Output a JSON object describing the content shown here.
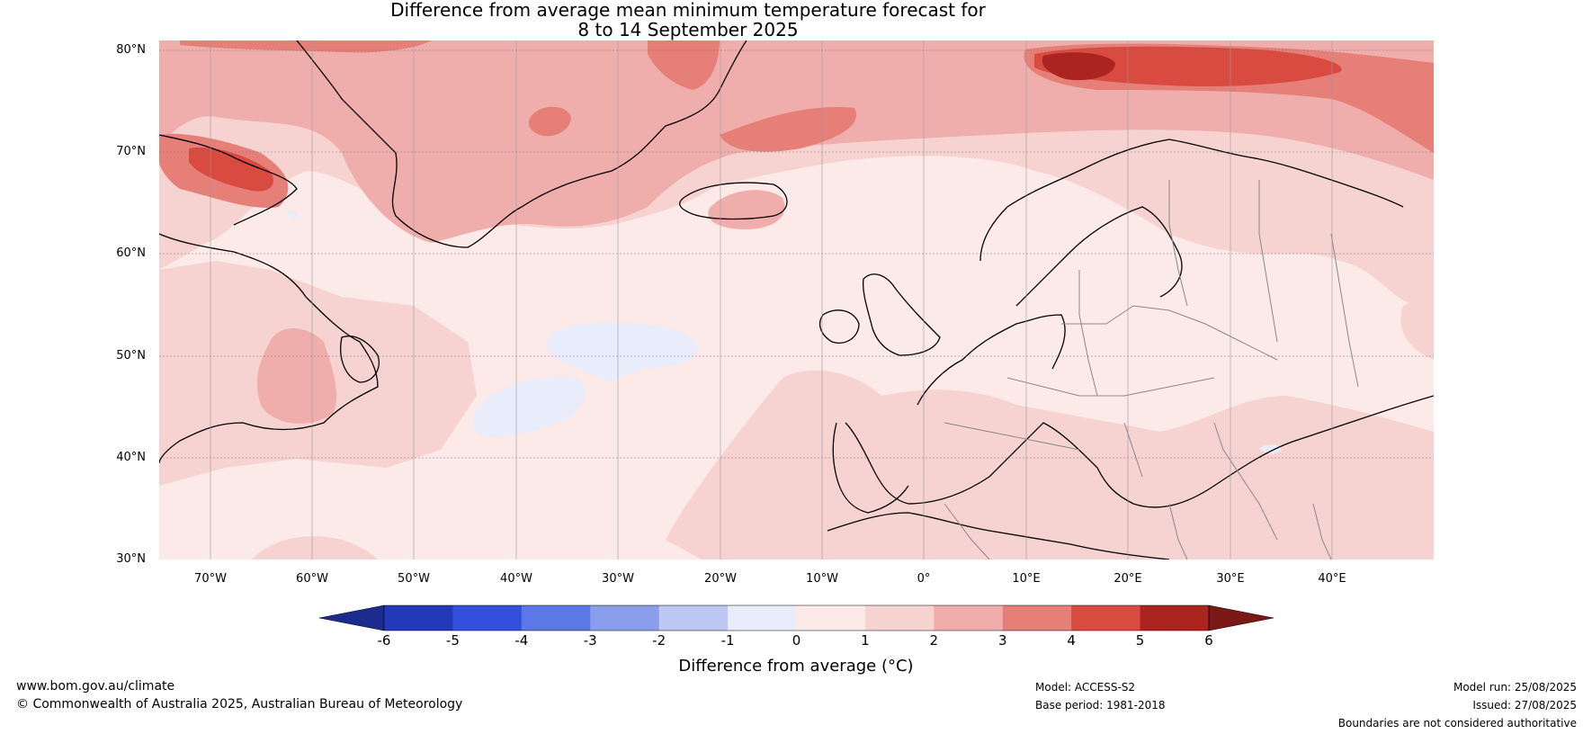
{
  "title": {
    "line1": "Difference from average mean minimum temperature forecast for",
    "line2": "8 to 14 September 2025"
  },
  "map": {
    "lat_labels": [
      "80°N",
      "70°N",
      "60°N",
      "50°N",
      "40°N",
      "30°N"
    ],
    "lon_labels": [
      "70°W",
      "60°W",
      "50°W",
      "40°W",
      "30°W",
      "20°W",
      "10°W",
      "0°",
      "10°E",
      "20°E",
      "30°E",
      "40°E"
    ],
    "extent": {
      "lon_min": -75,
      "lon_max": 50,
      "lat_min": 30,
      "lat_max": 81
    },
    "background_anomaly_color": "#fbeae8"
  },
  "colorbar": {
    "ticks": [
      "-6",
      "-5",
      "-4",
      "-3",
      "-2",
      "-1",
      "0",
      "1",
      "2",
      "3",
      "4",
      "5",
      "6"
    ],
    "colors": [
      "#1c2b8e",
      "#2439b7",
      "#3350dc",
      "#5c77e6",
      "#8a9eec",
      "#bcc7f4",
      "#e8ecfb",
      "#fbeae8",
      "#f6d2d0",
      "#efaeab",
      "#e57f78",
      "#d94a40",
      "#ab2420",
      "#7a1915"
    ],
    "label": "Difference from average (°C)"
  },
  "footer": {
    "website": "www.bom.gov.au/climate",
    "copyright": "© Commonwealth of Australia 2025, Australian Bureau of Meteorology",
    "model": "Model: ACCESS-S2",
    "base_period": "Base period: 1981-2018",
    "model_run": "Model run: 25/08/2025",
    "issued": "Issued: 27/08/2025",
    "disclaimer": "Boundaries are not considered authoritative"
  }
}
